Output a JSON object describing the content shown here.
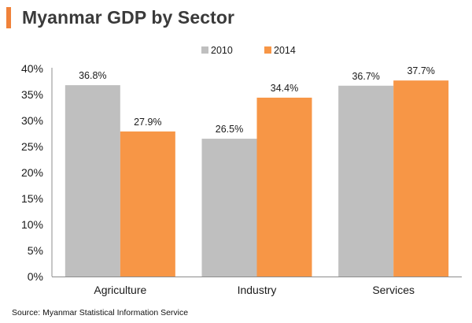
{
  "title": "Myanmar GDP by Sector",
  "source": "Source: Myanmar Statistical Information Service",
  "colors": {
    "title_accent": "#f0823a",
    "title_text": "#3a3a3a",
    "axis": "#8c8c8c"
  },
  "chart_data": {
    "type": "bar",
    "categories": [
      "Agriculture",
      "Industry",
      "Services"
    ],
    "series": [
      {
        "name": "2010",
        "color": "#bfbfbf",
        "values": [
          36.8,
          26.5,
          36.7
        ],
        "labels": [
          "36.8%",
          "26.5%",
          "36.7%"
        ]
      },
      {
        "name": "2014",
        "color": "#f79646",
        "values": [
          27.9,
          34.4,
          37.7
        ],
        "labels": [
          "27.9%",
          "34.4%",
          "37.7%"
        ]
      }
    ],
    "ylim": [
      0,
      40
    ],
    "yticks": [
      "0%",
      "5%",
      "10%",
      "15%",
      "20%",
      "25%",
      "30%",
      "35%",
      "40%"
    ],
    "legend_position": "top-center",
    "grid": false
  }
}
